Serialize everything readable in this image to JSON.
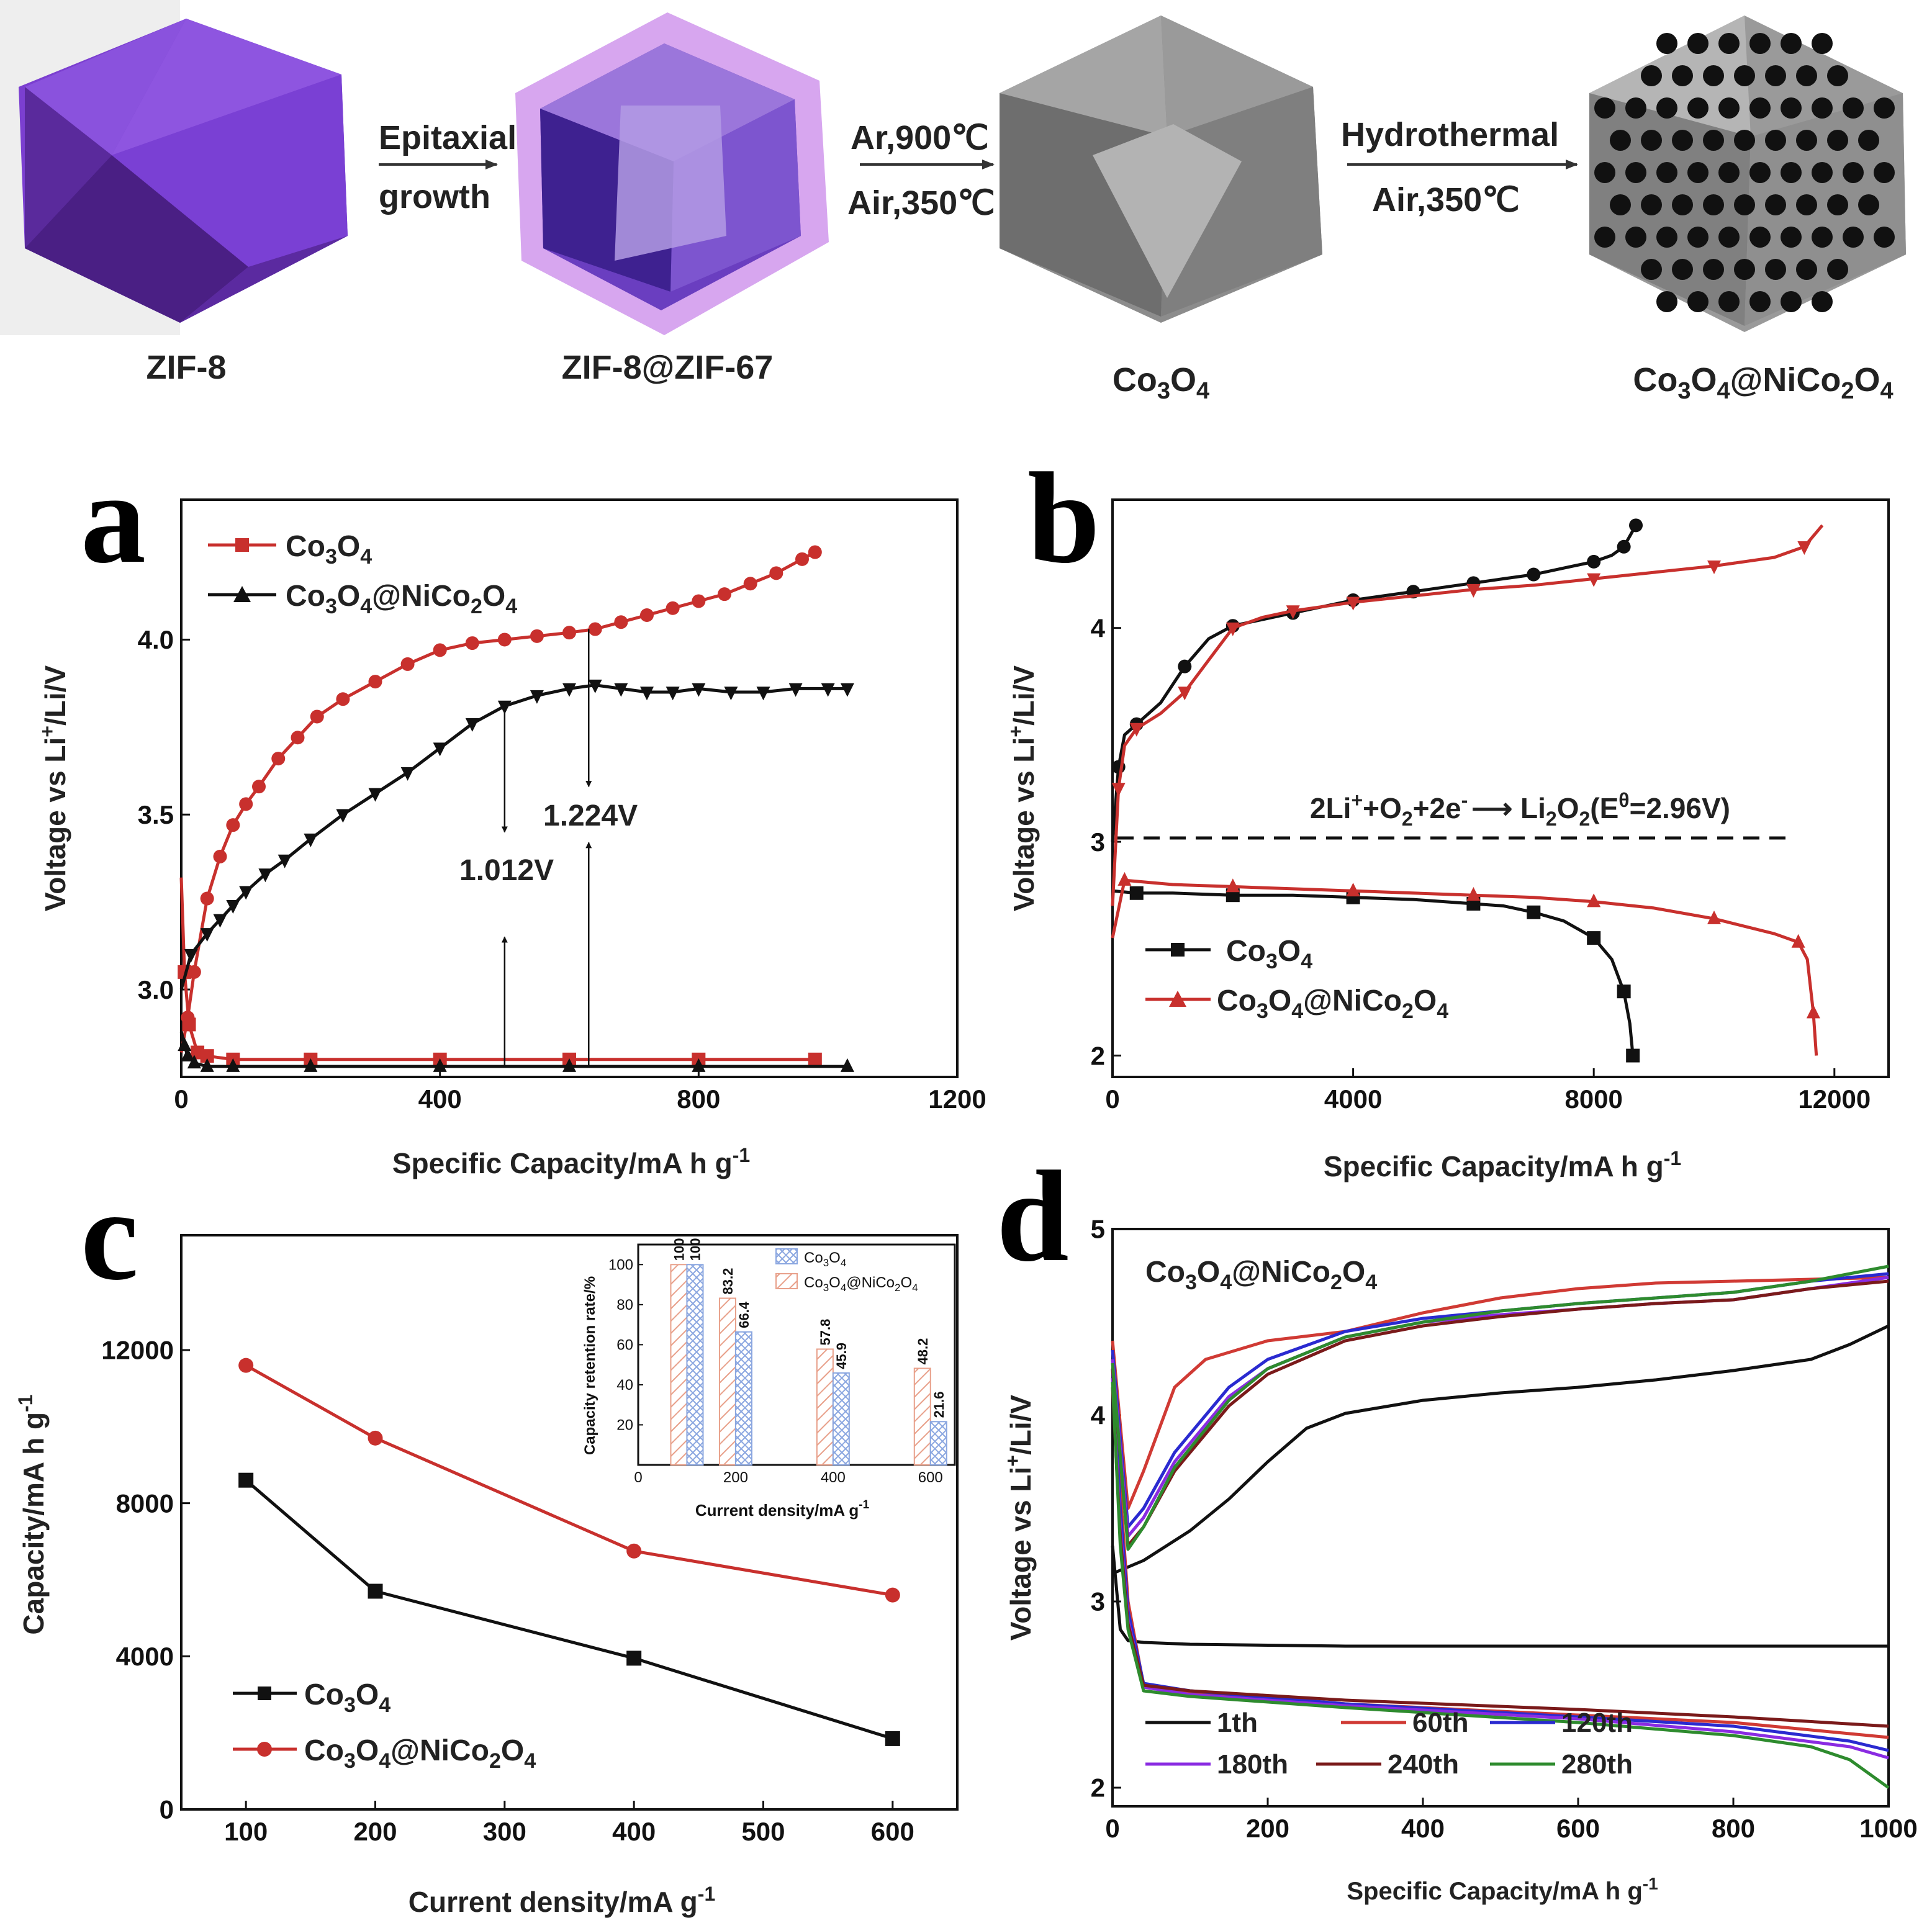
{
  "scheme": {
    "step1": [
      "Epitaxial",
      "growth"
    ],
    "step2": [
      "Ar,900℃",
      "Air,350℃"
    ],
    "step3": [
      "Hydrothermal",
      "Air,350℃"
    ],
    "names": [
      {
        "base": "ZIF-8"
      },
      {
        "base": "ZIF-8@ZIF-67"
      },
      {
        "parts": [
          "Co",
          "3",
          "O",
          "4"
        ]
      },
      {
        "parts": [
          "Co",
          "3",
          "O",
          "4",
          "@NiCo",
          "2",
          "O",
          "4"
        ]
      }
    ],
    "colors": {
      "zif8": "#7b3fd0",
      "zif67": "#c58be6",
      "co3o4": "#8c8c8c",
      "dots": "#111111"
    }
  },
  "chart_data": [
    {
      "panel": "a",
      "type": "line",
      "xlabel": "Specific Capacity/mA h g-1",
      "ylabel": "Voltage vs Li+/Li/V",
      "xlim": [
        0,
        1200
      ],
      "ylim": [
        2.75,
        4.4
      ],
      "xticks": [
        0,
        400,
        800,
        1200
      ],
      "yticks": [
        3.0,
        3.5,
        4.0
      ],
      "legend": [
        "Co3O4",
        "Co3O4@NiCo2O4"
      ],
      "annotations": [
        "1.012V",
        "1.224V"
      ],
      "series": [
        {
          "name": "Co3O4 charge",
          "color": "#c8302d",
          "marker": "circle",
          "x": [
            0,
            10,
            20,
            40,
            60,
            80,
            100,
            120,
            150,
            180,
            210,
            250,
            300,
            350,
            400,
            450,
            500,
            550,
            600,
            640,
            680,
            720,
            760,
            800,
            840,
            880,
            920,
            960,
            980
          ],
          "y": [
            2.82,
            2.92,
            3.05,
            3.26,
            3.38,
            3.47,
            3.53,
            3.58,
            3.66,
            3.72,
            3.78,
            3.83,
            3.88,
            3.93,
            3.97,
            3.99,
            4.0,
            4.01,
            4.02,
            4.03,
            4.05,
            4.07,
            4.09,
            4.11,
            4.13,
            4.16,
            4.19,
            4.23,
            4.25
          ]
        },
        {
          "name": "Co3O4 discharge",
          "color": "#c8302d",
          "marker": "square",
          "x": [
            0,
            5,
            12,
            25,
            40,
            80,
            200,
            400,
            600,
            800,
            980
          ],
          "y": [
            3.32,
            3.05,
            2.9,
            2.82,
            2.81,
            2.8,
            2.8,
            2.8,
            2.8,
            2.8,
            2.8
          ]
        },
        {
          "name": "Co3O4@NiCo2O4 charge",
          "color": "#111111",
          "marker": "triangle-down",
          "x": [
            0,
            15,
            40,
            60,
            80,
            100,
            130,
            160,
            200,
            250,
            300,
            350,
            400,
            450,
            500,
            550,
            600,
            640,
            680,
            720,
            760,
            800,
            850,
            900,
            950,
            1000,
            1030
          ],
          "y": [
            3.0,
            3.1,
            3.16,
            3.2,
            3.24,
            3.28,
            3.33,
            3.37,
            3.43,
            3.5,
            3.56,
            3.62,
            3.69,
            3.76,
            3.81,
            3.84,
            3.86,
            3.87,
            3.86,
            3.85,
            3.85,
            3.86,
            3.85,
            3.85,
            3.86,
            3.86,
            3.86
          ]
        },
        {
          "name": "Co3O4@NiCo2O4 discharge",
          "color": "#111111",
          "marker": "triangle",
          "x": [
            0,
            5,
            10,
            20,
            40,
            80,
            200,
            400,
            600,
            800,
            1030
          ],
          "y": [
            2.88,
            2.84,
            2.81,
            2.79,
            2.78,
            2.78,
            2.78,
            2.78,
            2.78,
            2.78,
            2.78
          ]
        }
      ],
      "arrows": [
        {
          "x": 500,
          "y_from": 3.81,
          "y_to": 3.45
        },
        {
          "x": 500,
          "y_from": 2.78,
          "y_to": 3.15
        },
        {
          "x": 630,
          "y_from": 4.03,
          "y_to": 3.58
        },
        {
          "x": 630,
          "y_from": 2.78,
          "y_to": 3.42
        }
      ]
    },
    {
      "panel": "b",
      "type": "line",
      "xlabel": "Specific Capacity/mA h g-1",
      "ylabel": "Voltage vs Li+/Li/V",
      "xlim": [
        0,
        12900
      ],
      "ylim": [
        1.9,
        4.6
      ],
      "xticks": [
        0,
        4000,
        8000,
        12000
      ],
      "yticks": [
        2,
        3,
        4
      ],
      "legend": [
        "Co3O4",
        "Co3O4@NiCo2O4"
      ],
      "reaction_text": "2Li+ + O2 + 2e- → Li2O2 (Eθ=2.96V)",
      "reference_voltage": 2.96,
      "series": [
        {
          "name": "Co3O4 charge",
          "color": "#111111",
          "marker": "circle",
          "x": [
            0,
            100,
            200,
            400,
            800,
            1200,
            1600,
            2000,
            2500,
            3000,
            3500,
            4000,
            4500,
            5000,
            5500,
            6000,
            6500,
            7000,
            7500,
            8000,
            8300,
            8500,
            8600,
            8700
          ],
          "y": [
            3.0,
            3.35,
            3.5,
            3.55,
            3.65,
            3.82,
            3.95,
            4.01,
            4.04,
            4.07,
            4.1,
            4.13,
            4.15,
            4.17,
            4.19,
            4.21,
            4.23,
            4.25,
            4.28,
            4.31,
            4.34,
            4.38,
            4.43,
            4.48
          ]
        },
        {
          "name": "Co3O4 discharge",
          "color": "#111111",
          "marker": "square",
          "x": [
            0,
            400,
            1000,
            2000,
            3000,
            4000,
            5000,
            6000,
            6500,
            7000,
            7500,
            8000,
            8300,
            8500,
            8600,
            8650
          ],
          "y": [
            2.77,
            2.76,
            2.76,
            2.75,
            2.75,
            2.74,
            2.73,
            2.71,
            2.7,
            2.67,
            2.63,
            2.55,
            2.45,
            2.3,
            2.15,
            2.0
          ]
        },
        {
          "name": "Co3O4@NiCo2O4 charge",
          "color": "#c8302d",
          "marker": "triangle-down",
          "x": [
            0,
            100,
            200,
            400,
            800,
            1200,
            1600,
            2000,
            2500,
            3000,
            3500,
            4000,
            5000,
            6000,
            7000,
            8000,
            9000,
            10000,
            11000,
            11500,
            11800
          ],
          "y": [
            2.7,
            3.25,
            3.45,
            3.53,
            3.6,
            3.7,
            3.85,
            4.0,
            4.05,
            4.08,
            4.1,
            4.12,
            4.15,
            4.18,
            4.2,
            4.23,
            4.26,
            4.29,
            4.33,
            4.38,
            4.48
          ]
        },
        {
          "name": "Co3O4@NiCo2O4 discharge",
          "color": "#c8302d",
          "marker": "triangle",
          "x": [
            0,
            200,
            1000,
            2000,
            3000,
            4000,
            5000,
            6000,
            7000,
            8000,
            9000,
            10000,
            11000,
            11400,
            11550,
            11650,
            11700
          ],
          "y": [
            2.55,
            2.82,
            2.8,
            2.79,
            2.78,
            2.77,
            2.76,
            2.75,
            2.74,
            2.72,
            2.69,
            2.64,
            2.57,
            2.53,
            2.45,
            2.2,
            2.0
          ]
        }
      ]
    },
    {
      "panel": "c",
      "type": "line",
      "xlabel": "Current density/mA g-1",
      "ylabel": "Capacity/mA h g-1",
      "xlim": [
        50,
        650
      ],
      "ylim": [
        0,
        15000
      ],
      "xticks": [
        100,
        200,
        300,
        400,
        500,
        600
      ],
      "yticks": [
        0,
        4000,
        8000,
        12000
      ],
      "legend": [
        "Co3O4",
        "Co3O4@NiCo2O4"
      ],
      "series": [
        {
          "name": "Co3O4",
          "color": "#111111",
          "marker": "square",
          "x": [
            100,
            200,
            400,
            600
          ],
          "y": [
            8600,
            5700,
            3950,
            1850
          ]
        },
        {
          "name": "Co3O4@NiCo2O4",
          "color": "#c8302d",
          "marker": "circle",
          "x": [
            100,
            200,
            400,
            600
          ],
          "y": [
            11600,
            9700,
            6750,
            5600
          ]
        }
      ],
      "inset": {
        "type": "bar",
        "xlabel": "Current density/mA g-1",
        "ylabel": "Capacity retention rate/%",
        "xlim": [
          0,
          650
        ],
        "ylim": [
          0,
          110
        ],
        "xticks": [
          0,
          200,
          400,
          600
        ],
        "yticks": [
          20,
          40,
          60,
          80,
          100
        ],
        "legend": [
          "Co3O4",
          "Co3O4@NiCo2O4"
        ],
        "categories": [
          100,
          200,
          400,
          600
        ],
        "series": [
          {
            "name": "Co3O4@NiCo2O4",
            "color": "#e8a08a",
            "values": [
              100,
              83.2,
              57.8,
              48.2
            ]
          },
          {
            "name": "Co3O4",
            "color": "#8aa6e0",
            "values": [
              100,
              66.4,
              45.9,
              21.6
            ]
          }
        ]
      }
    },
    {
      "panel": "d",
      "type": "line",
      "title": "Co3O4@NiCo2O4",
      "xlabel": "Specific Capacity/mA h g-1",
      "ylabel": "Voltage vs Li+/Li/V",
      "xlim": [
        0,
        1000
      ],
      "ylim": [
        1.9,
        5.0
      ],
      "xticks": [
        0,
        200,
        400,
        600,
        800,
        1000
      ],
      "yticks": [
        2,
        3,
        4,
        5
      ],
      "series": [
        {
          "name": "1th",
          "color": "#111111",
          "charge": {
            "x": [
              0,
              40,
              100,
              150,
              200,
              250,
              300,
              400,
              500,
              600,
              700,
              800,
              900,
              950,
              1000
            ],
            "y": [
              3.15,
              3.22,
              3.38,
              3.55,
              3.75,
              3.93,
              4.01,
              4.08,
              4.12,
              4.15,
              4.19,
              4.24,
              4.3,
              4.38,
              4.48
            ]
          },
          "discharge": {
            "x": [
              0,
              10,
              20,
              40,
              100,
              300,
              600,
              1000
            ],
            "y": [
              3.3,
              2.85,
              2.79,
              2.78,
              2.77,
              2.76,
              2.76,
              2.76
            ]
          }
        },
        {
          "name": "60th",
          "color": "#d03a34",
          "charge": {
            "x": [
              0,
              20,
              40,
              80,
              120,
              200,
              300,
              400,
              500,
              600,
              700,
              800,
              900,
              1000
            ],
            "y": [
              4.4,
              3.5,
              3.7,
              4.15,
              4.3,
              4.4,
              4.45,
              4.55,
              4.63,
              4.68,
              4.71,
              4.72,
              4.73,
              4.74
            ]
          },
          "discharge": {
            "x": [
              0,
              10,
              20,
              40,
              100,
              300,
              600,
              800,
              1000
            ],
            "y": [
              4.3,
              3.6,
              3.0,
              2.55,
              2.51,
              2.45,
              2.39,
              2.35,
              2.27
            ]
          }
        },
        {
          "name": "120th",
          "color": "#2a2ad0",
          "charge": {
            "x": [
              0,
              20,
              40,
              80,
              150,
              200,
              300,
              400,
              500,
              600,
              700,
              800,
              900,
              1000
            ],
            "y": [
              4.35,
              3.4,
              3.5,
              3.8,
              4.15,
              4.3,
              4.45,
              4.52,
              4.56,
              4.6,
              4.63,
              4.66,
              4.72,
              4.76
            ]
          },
          "discharge": {
            "x": [
              0,
              10,
              20,
              40,
              100,
              300,
              600,
              800,
              950,
              1000
            ],
            "y": [
              4.25,
              3.5,
              2.95,
              2.56,
              2.52,
              2.45,
              2.38,
              2.33,
              2.25,
              2.2
            ]
          }
        },
        {
          "name": "180th",
          "color": "#8a2be2",
          "charge": {
            "x": [
              0,
              20,
              40,
              80,
              150,
              200,
              300,
              400,
              500,
              600,
              700,
              800,
              900,
              1000
            ],
            "y": [
              4.3,
              3.35,
              3.45,
              3.75,
              4.1,
              4.25,
              4.42,
              4.5,
              4.54,
              4.57,
              4.6,
              4.62,
              4.68,
              4.74
            ]
          },
          "discharge": {
            "x": [
              0,
              10,
              20,
              40,
              100,
              300,
              600,
              800,
              950,
              1000
            ],
            "y": [
              4.2,
              3.4,
              2.9,
              2.54,
              2.5,
              2.44,
              2.37,
              2.3,
              2.22,
              2.16
            ]
          }
        },
        {
          "name": "240th",
          "color": "#7a1a1a",
          "charge": {
            "x": [
              0,
              20,
              40,
              80,
              150,
              200,
              300,
              400,
              500,
              600,
              700,
              800,
              900,
              1000
            ],
            "y": [
              4.25,
              3.3,
              3.4,
              3.7,
              4.05,
              4.22,
              4.4,
              4.48,
              4.53,
              4.57,
              4.6,
              4.62,
              4.68,
              4.72
            ]
          },
          "discharge": {
            "x": [
              0,
              10,
              20,
              40,
              100,
              300,
              600,
              800,
              1000
            ],
            "y": [
              4.15,
              3.35,
              2.88,
              2.55,
              2.52,
              2.47,
              2.42,
              2.38,
              2.33
            ]
          }
        },
        {
          "name": "280th",
          "color": "#2e8b2e",
          "charge": {
            "x": [
              0,
              20,
              40,
              80,
              150,
              200,
              300,
              400,
              500,
              600,
              700,
              800,
              900,
              1000
            ],
            "y": [
              4.28,
              3.28,
              3.4,
              3.72,
              4.08,
              4.25,
              4.42,
              4.5,
              4.56,
              4.6,
              4.63,
              4.66,
              4.72,
              4.8
            ]
          },
          "discharge": {
            "x": [
              0,
              10,
              20,
              40,
              100,
              300,
              600,
              800,
              900,
              950,
              1000
            ],
            "y": [
              4.18,
              3.3,
              2.85,
              2.52,
              2.49,
              2.43,
              2.35,
              2.28,
              2.22,
              2.15,
              2.0
            ]
          }
        }
      ]
    }
  ]
}
